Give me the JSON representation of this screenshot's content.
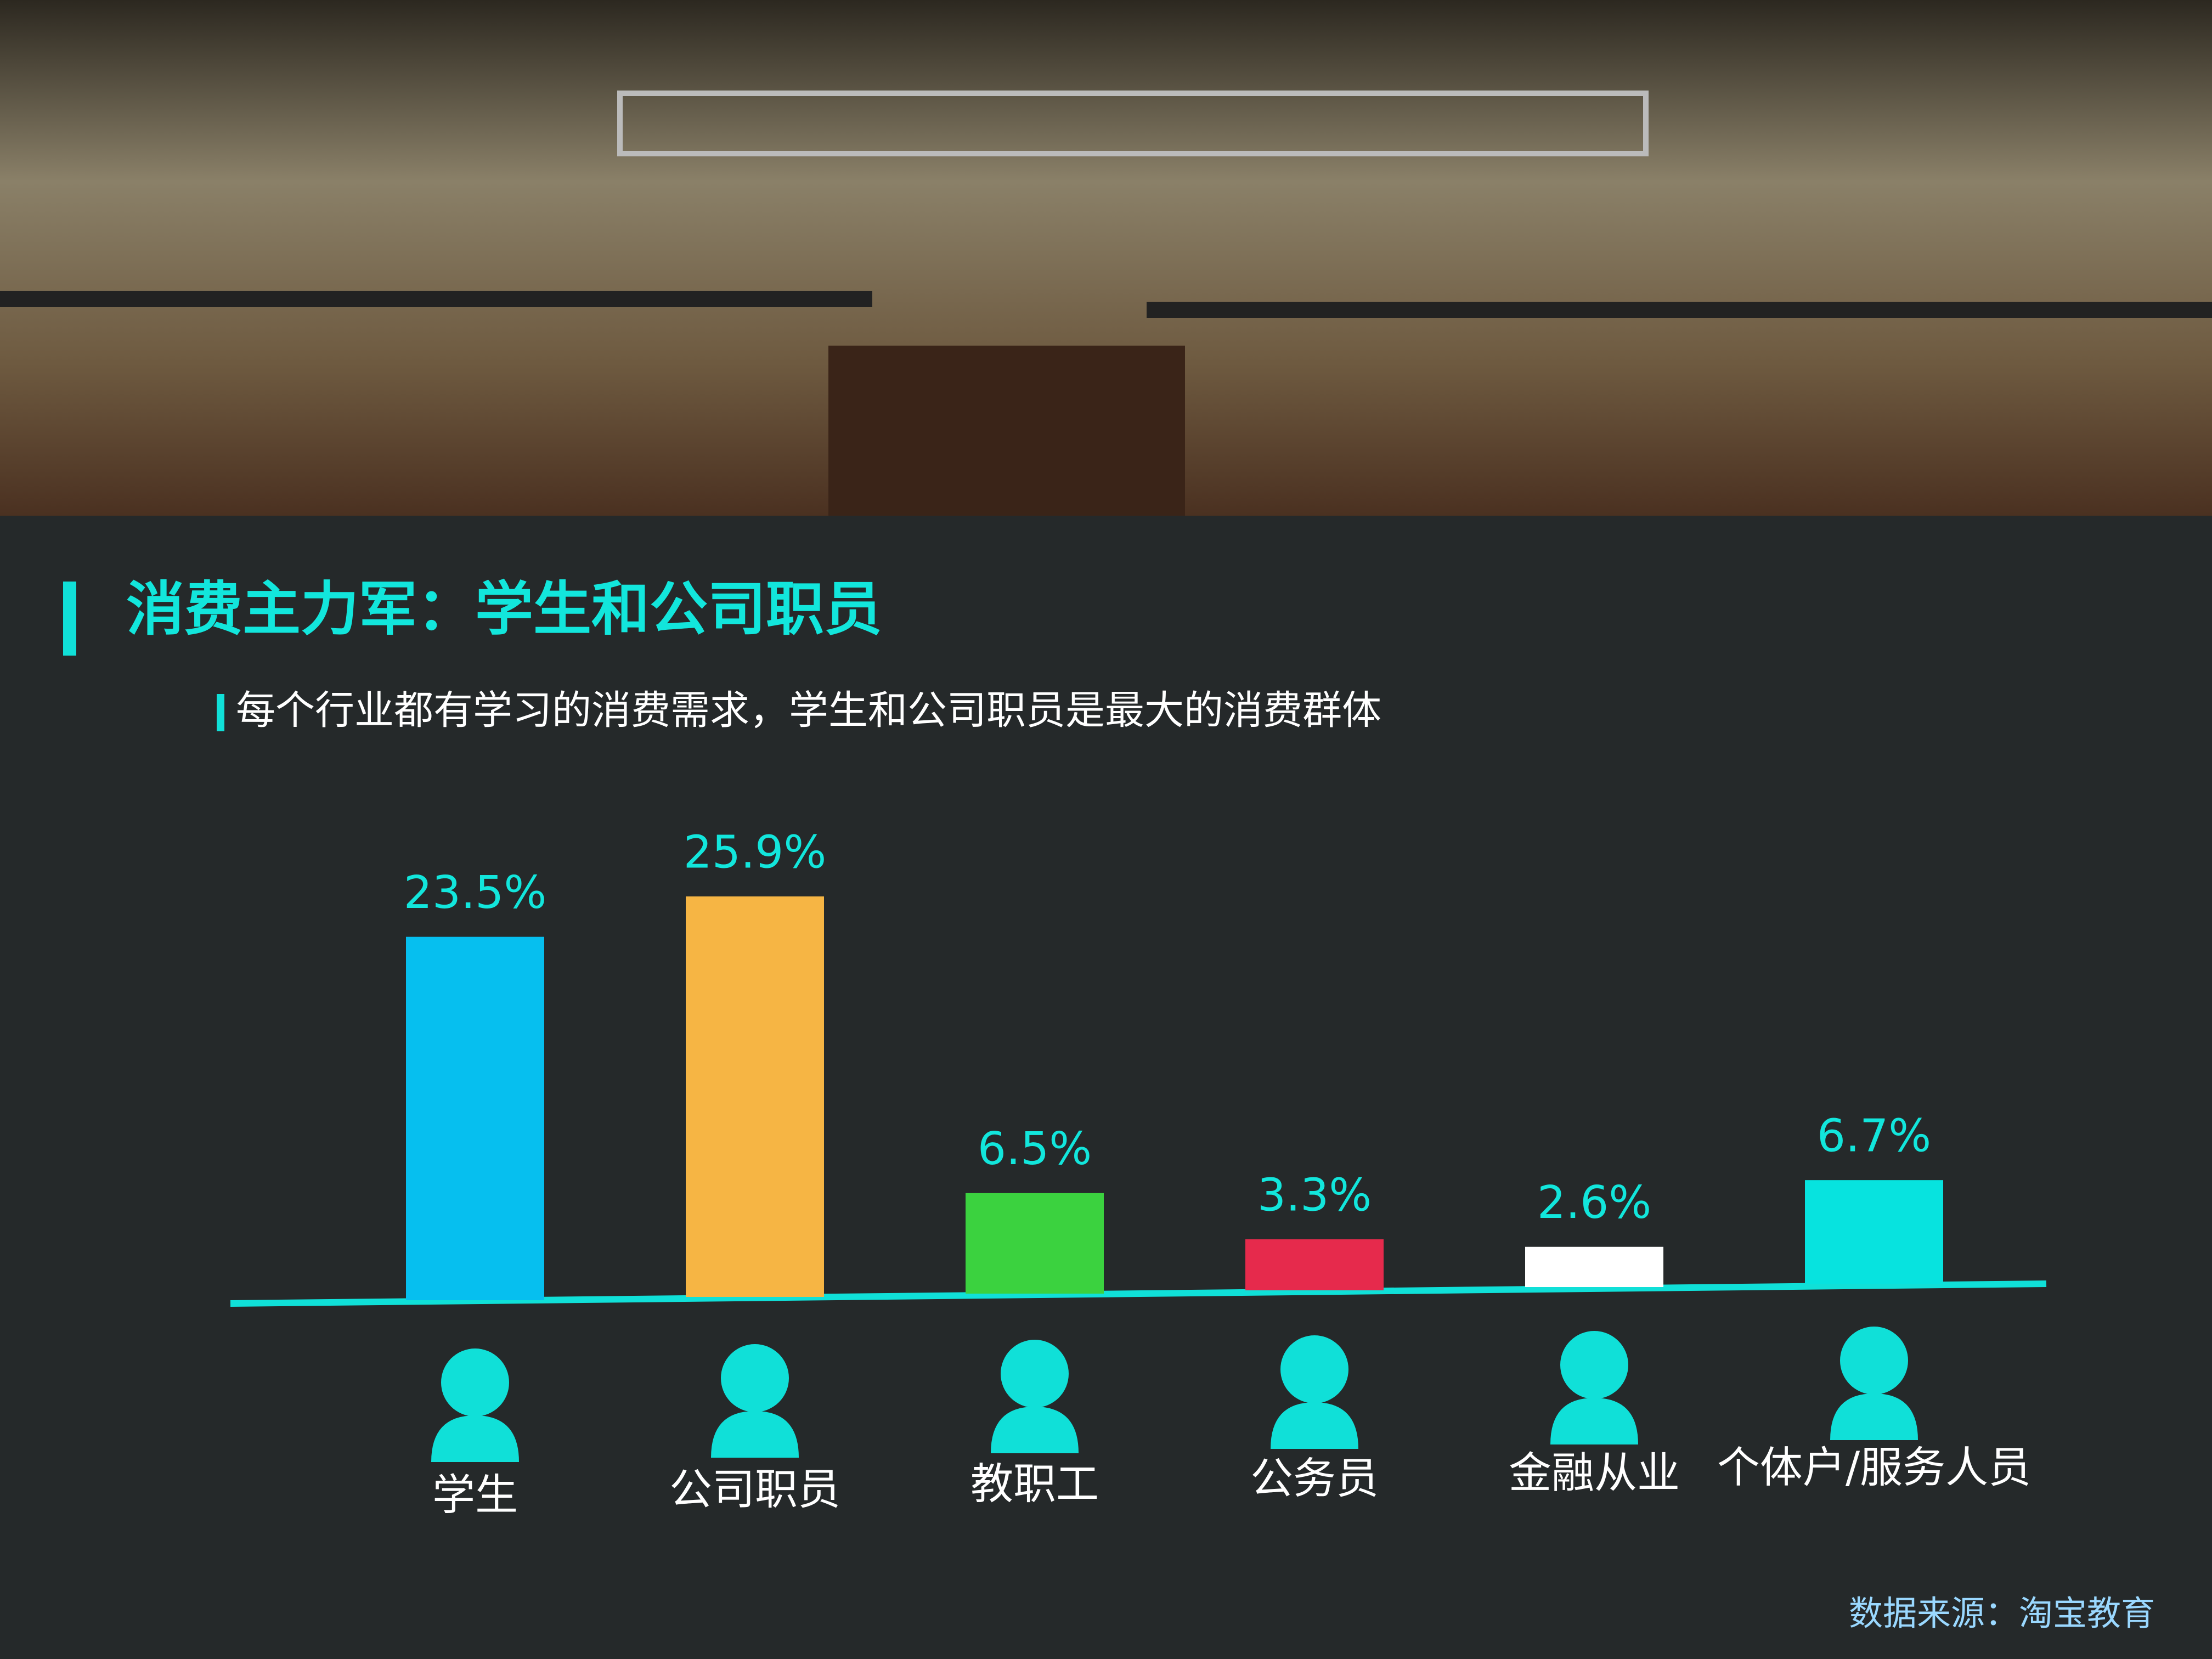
{
  "chart_data": {
    "type": "bar",
    "title": "消费主力军：学生和公司职员",
    "subtitle": "每个行业都有学习的消费需求，学生和公司职员是最大的消费群体",
    "source": "数据来源：淘宝教育",
    "categories": [
      "学生",
      "公司职员",
      "教职工",
      "公务员",
      "金融从业",
      "个体户/服务人员"
    ],
    "values": [
      23.5,
      25.9,
      6.5,
      3.3,
      2.6,
      6.7
    ],
    "value_labels": [
      "23.5%",
      "25.9%",
      "6.5%",
      "3.3%",
      "2.6%",
      "6.7%"
    ],
    "colors": [
      "#06bfef",
      "#f6b544",
      "#3bd23f",
      "#e62a4c",
      "#ffffff",
      "#07e3df"
    ]
  }
}
